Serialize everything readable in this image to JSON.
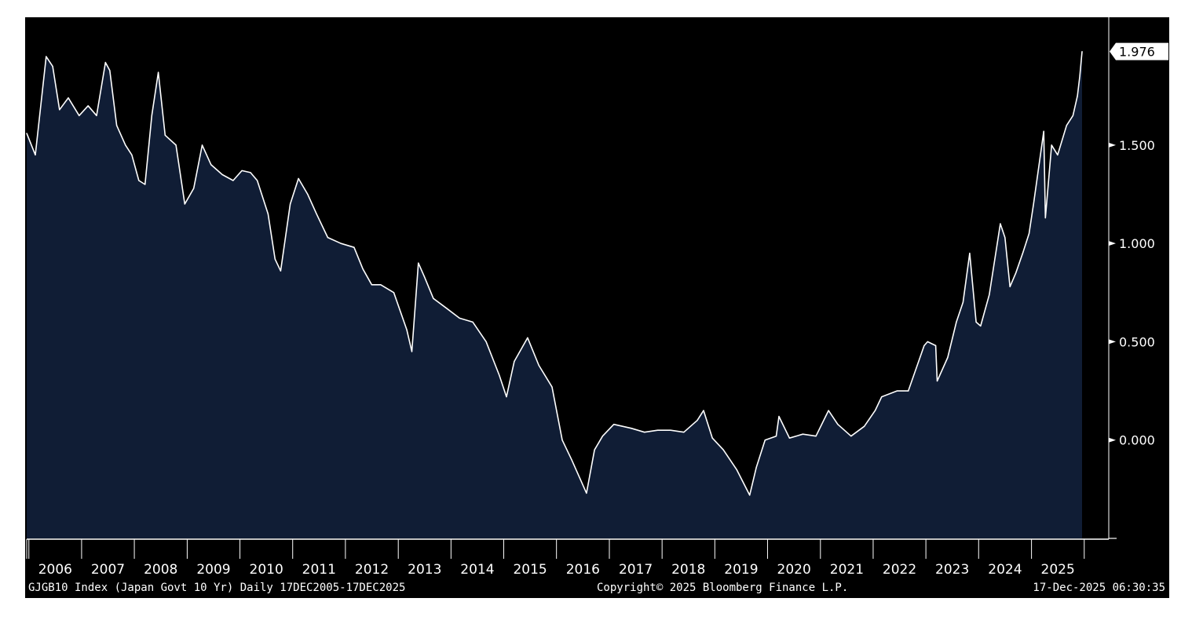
{
  "footer": {
    "index_description": "GJGB10 Index (Japan Govt 10 Yr) Daily 17DEC2005-17DEC2025",
    "copyright": "Copyright© 2025 Bloomberg Finance L.P.",
    "timestamp": "17-Dec-2025 06:30:35"
  },
  "chart_data": {
    "type": "area",
    "title": "",
    "xlabel": "",
    "ylabel": "",
    "x": [
      "2005-12-17",
      "2006-02-15",
      "2006-05-01",
      "2006-06-15",
      "2006-08-01",
      "2006-10-01",
      "2006-12-15",
      "2007-02-15",
      "2007-04-15",
      "2007-06-15",
      "2007-07-15",
      "2007-09-01",
      "2007-11-01",
      "2007-12-15",
      "2008-02-01",
      "2008-03-15",
      "2008-05-01",
      "2008-06-15",
      "2008-08-01",
      "2008-10-15",
      "2008-12-15",
      "2009-02-15",
      "2009-04-15",
      "2009-06-15",
      "2009-09-01",
      "2009-11-15",
      "2010-01-15",
      "2010-03-15",
      "2010-05-01",
      "2010-07-15",
      "2010-09-01",
      "2010-10-10",
      "2010-12-15",
      "2011-02-10",
      "2011-04-15",
      "2011-06-15",
      "2011-09-01",
      "2011-12-01",
      "2012-03-01",
      "2012-05-01",
      "2012-07-01",
      "2012-09-01",
      "2012-12-01",
      "2013-03-01",
      "2013-04-05",
      "2013-05-20",
      "2013-07-01",
      "2013-09-01",
      "2013-12-01",
      "2014-03-01",
      "2014-06-01",
      "2014-09-01",
      "2014-12-01",
      "2015-01-20",
      "2015-03-15",
      "2015-06-15",
      "2015-09-01",
      "2015-12-01",
      "2016-02-10",
      "2016-04-15",
      "2016-07-27",
      "2016-09-20",
      "2016-11-15",
      "2017-02-01",
      "2017-06-01",
      "2017-09-01",
      "2017-12-01",
      "2018-03-01",
      "2018-06-01",
      "2018-09-01",
      "2018-10-15",
      "2018-12-15",
      "2019-03-01",
      "2019-06-01",
      "2019-08-30",
      "2019-10-15",
      "2019-12-15",
      "2020-03-01",
      "2020-03-20",
      "2020-06-01",
      "2020-09-01",
      "2020-12-01",
      "2021-02-26",
      "2021-05-01",
      "2021-08-01",
      "2021-11-01",
      "2022-01-15",
      "2022-03-01",
      "2022-06-15",
      "2022-09-01",
      "2022-12-20",
      "2023-01-13",
      "2023-03-10",
      "2023-03-20",
      "2023-06-01",
      "2023-07-31",
      "2023-09-15",
      "2023-10-31",
      "2023-12-15",
      "2024-01-15",
      "2024-03-15",
      "2024-05-30",
      "2024-07-01",
      "2024-08-05",
      "2024-09-15",
      "2024-11-01",
      "2024-12-15",
      "2025-01-15",
      "2025-03-27",
      "2025-04-07",
      "2025-05-20",
      "2025-07-01",
      "2025-09-01",
      "2025-10-15",
      "2025-11-15",
      "2025-12-01",
      "2025-12-17"
    ],
    "y": [
      1.56,
      1.45,
      1.95,
      1.9,
      1.68,
      1.74,
      1.65,
      1.7,
      1.65,
      1.92,
      1.88,
      1.6,
      1.5,
      1.45,
      1.32,
      1.3,
      1.65,
      1.87,
      1.55,
      1.5,
      1.2,
      1.28,
      1.5,
      1.4,
      1.35,
      1.32,
      1.37,
      1.36,
      1.32,
      1.15,
      0.92,
      0.86,
      1.2,
      1.33,
      1.25,
      1.15,
      1.03,
      1.0,
      0.98,
      0.87,
      0.79,
      0.79,
      0.75,
      0.56,
      0.45,
      0.9,
      0.83,
      0.72,
      0.67,
      0.62,
      0.6,
      0.5,
      0.33,
      0.22,
      0.4,
      0.52,
      0.38,
      0.27,
      0.0,
      -0.1,
      -0.27,
      -0.05,
      0.02,
      0.08,
      0.06,
      0.04,
      0.05,
      0.05,
      0.04,
      0.1,
      0.15,
      0.01,
      -0.05,
      -0.15,
      -0.28,
      -0.14,
      0.0,
      0.02,
      0.12,
      0.01,
      0.03,
      0.02,
      0.15,
      0.08,
      0.02,
      0.07,
      0.15,
      0.22,
      0.25,
      0.25,
      0.48,
      0.5,
      0.48,
      0.3,
      0.42,
      0.6,
      0.7,
      0.95,
      0.6,
      0.58,
      0.74,
      1.1,
      1.03,
      0.78,
      0.85,
      0.95,
      1.05,
      1.2,
      1.57,
      1.13,
      1.5,
      1.45,
      1.6,
      1.65,
      1.75,
      1.85,
      1.976
    ],
    "ylim": [
      -0.5,
      2.15
    ],
    "y_ticks": [
      "1.500",
      "1.000",
      "0.500",
      "0.000"
    ],
    "y_tick_values": [
      1.5,
      1.0,
      0.5,
      0.0
    ],
    "x_ticks": [
      "2006",
      "2007",
      "2008",
      "2009",
      "2010",
      "2011",
      "2012",
      "2013",
      "2014",
      "2015",
      "2016",
      "2017",
      "2018",
      "2019",
      "2020",
      "2021",
      "2022",
      "2023",
      "2024",
      "2025"
    ],
    "x_range": [
      "2005-12-17",
      "2026-06-30"
    ],
    "last_value_label": "1.976",
    "last_value": 1.976,
    "grid": false,
    "legend": "none",
    "colors": {
      "background": "#000000",
      "area_fill": "#101d35",
      "line": "#ffffff",
      "axis_text": "#ffffff",
      "page_border": "#ffffff",
      "last_value_label_bg": "#ffffff",
      "last_value_label_text": "#000000"
    }
  }
}
